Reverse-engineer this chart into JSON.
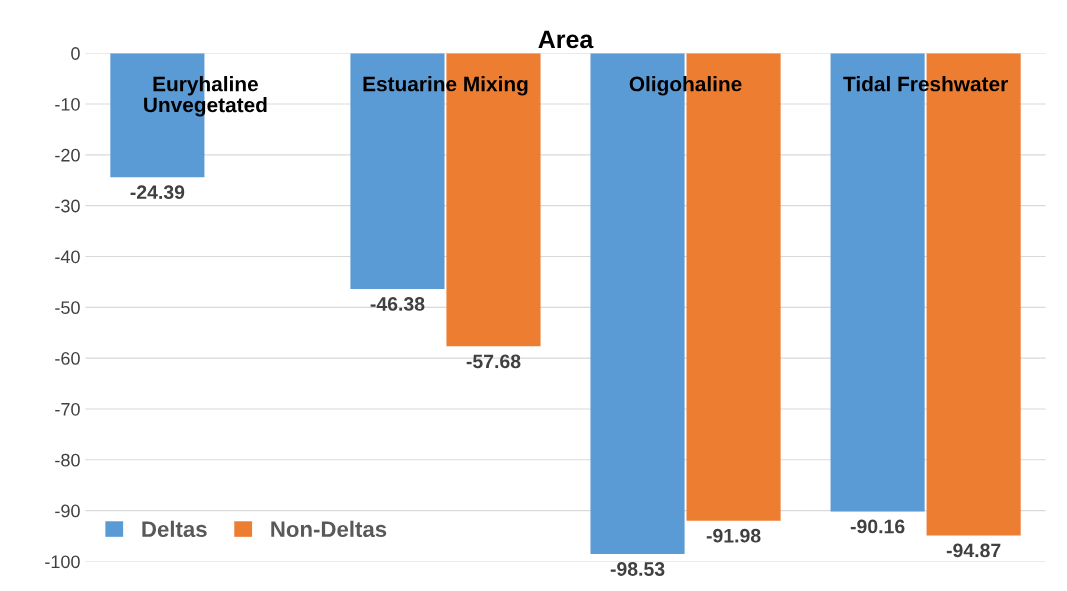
{
  "chart_data": {
    "type": "bar",
    "title": "Area",
    "categories": [
      "Euryhaline Unvegetated",
      "Estuarine Mixing",
      "Oligohaline",
      "Tidal Freshwater"
    ],
    "series": [
      {
        "name": "Deltas",
        "color": "#5b9bd5",
        "values": [
          -24.39,
          -46.38,
          -98.53,
          -90.16
        ]
      },
      {
        "name": "Non-Deltas",
        "color": "#ed7d31",
        "values": [
          null,
          -57.68,
          -91.98,
          -94.87
        ]
      }
    ],
    "ylim": [
      -100,
      0
    ],
    "yticks": [
      0,
      -10,
      -20,
      -30,
      -40,
      -50,
      -60,
      -70,
      -80,
      -90,
      -100
    ],
    "grid": "y",
    "legend": "bottom left",
    "data_labels": true
  }
}
